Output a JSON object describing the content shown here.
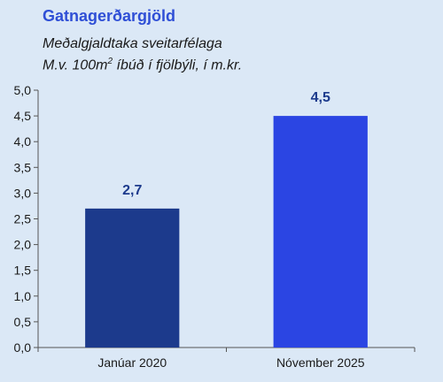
{
  "chart_data": {
    "type": "bar",
    "title": "Gatnagerðargjöld",
    "subtitle_line1": "Meðalgjaldtaka sveitarfélaga",
    "subtitle_line2_prefix": "M.v. 100m",
    "subtitle_line2_sup": "2",
    "subtitle_line2_suffix": " íbúð í fjölbýli, í m.kr.",
    "categories": [
      "Janúar 2020",
      "Nóvember 2025"
    ],
    "values": [
      2.7,
      4.5
    ],
    "value_labels": [
      "2,7",
      "4,5"
    ],
    "ylim": [
      0,
      5
    ],
    "yticks": [
      0,
      0.5,
      1,
      1.5,
      2,
      2.5,
      3,
      3.5,
      4,
      4.5,
      5
    ],
    "ytick_labels": [
      "0,0",
      "0,5",
      "1,0",
      "1,5",
      "2,0",
      "2,5",
      "3,0",
      "3,5",
      "4,0",
      "4,5",
      "5,0"
    ],
    "grid": false,
    "colors": [
      "#1c3a8c",
      "#2b45e3"
    ],
    "axis_color": "#555555"
  }
}
